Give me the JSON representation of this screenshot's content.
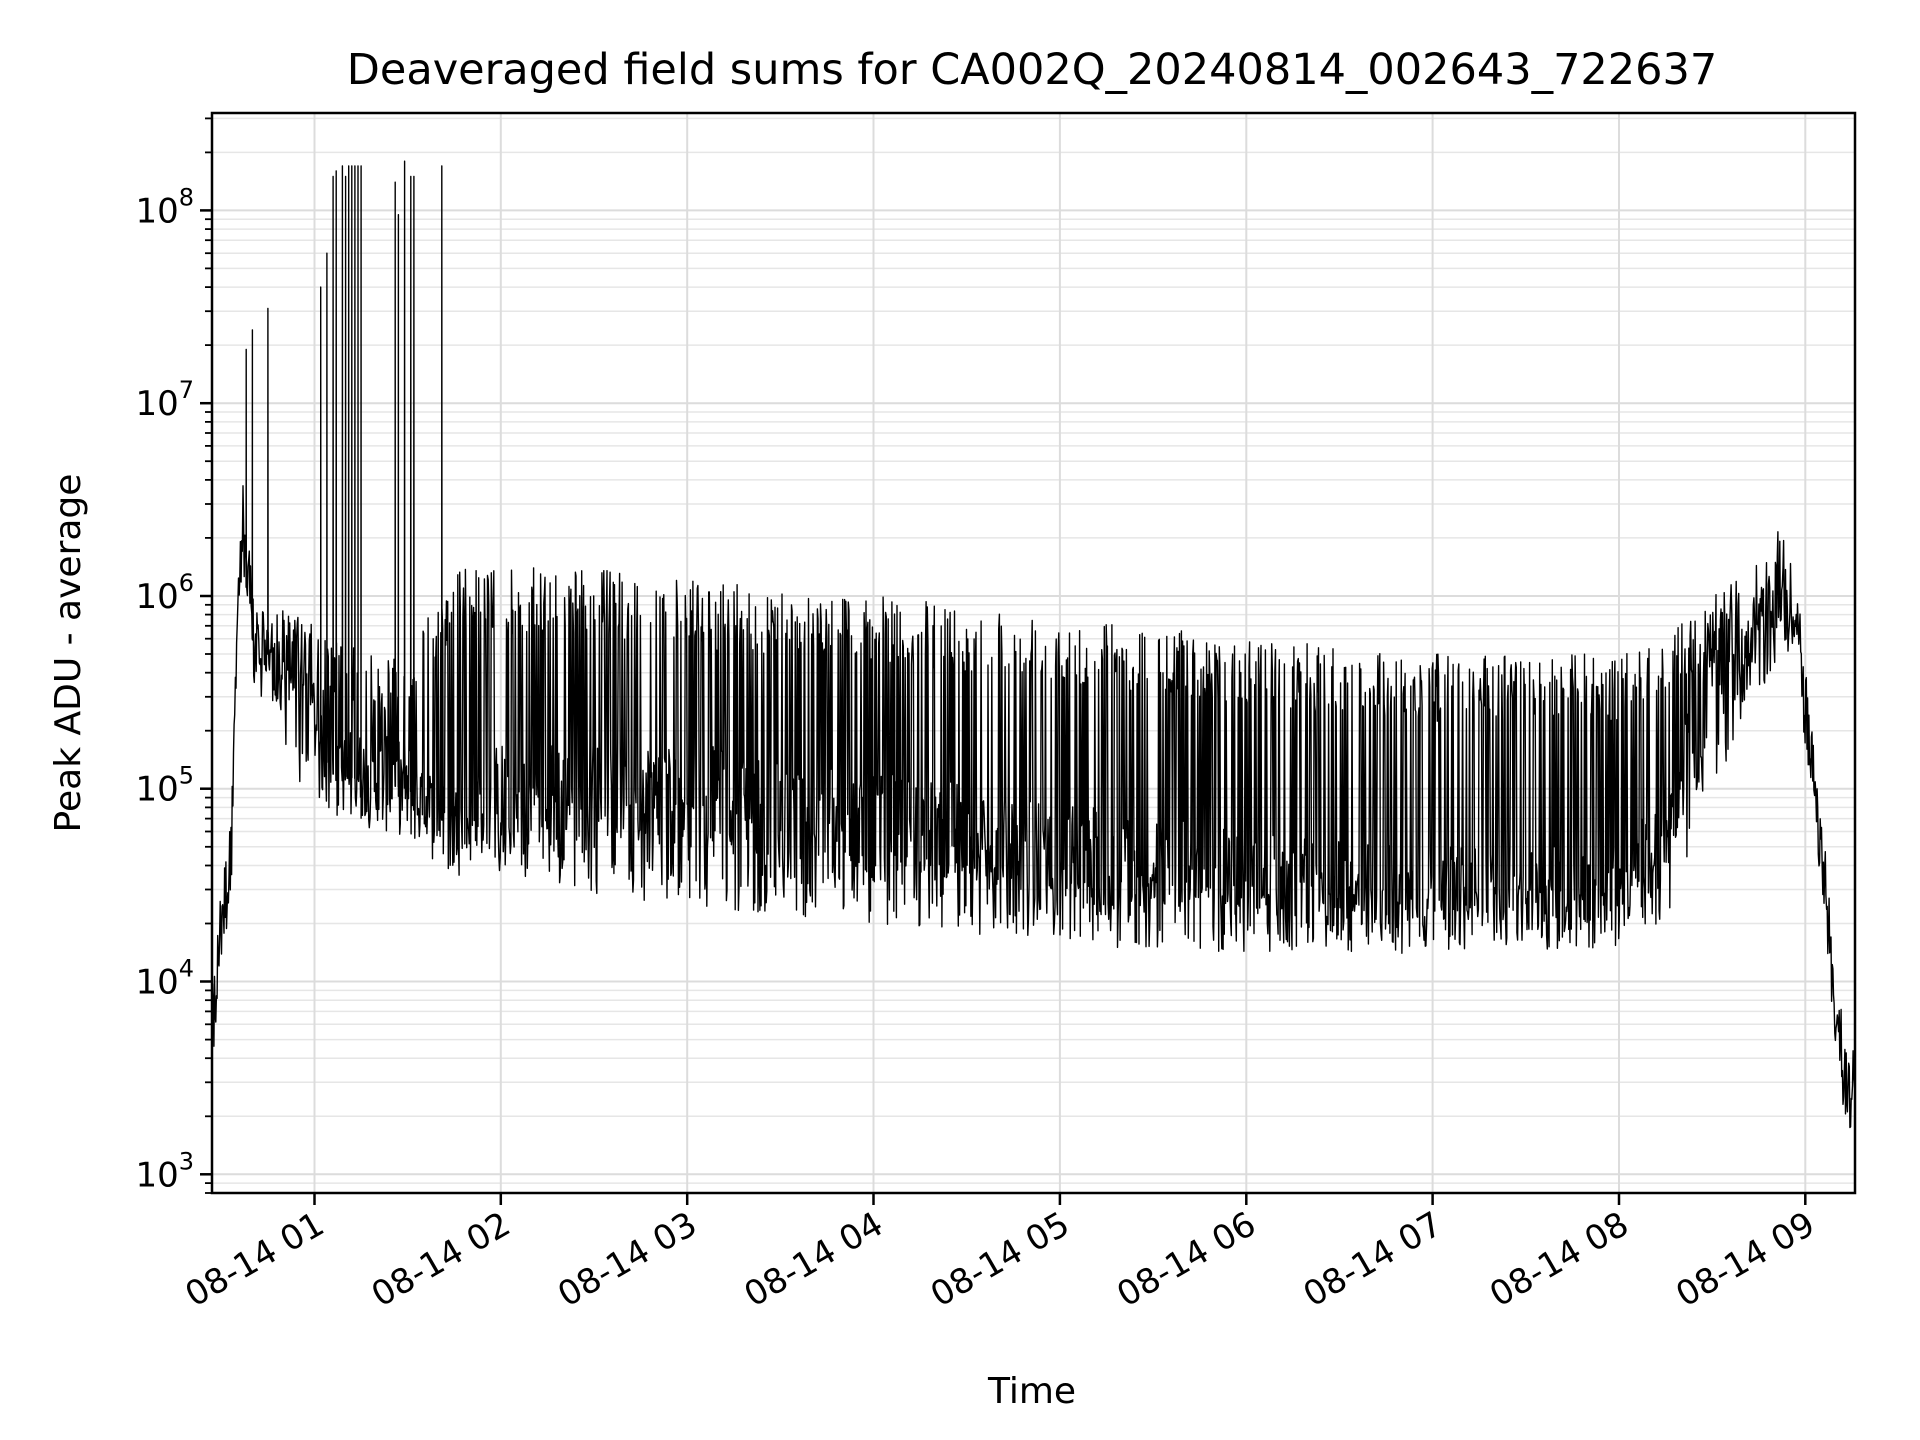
{
  "chart_data": {
    "type": "line",
    "title": "Deaveraged field sums for CA002Q_20240814_002643_722637",
    "xlabel": "Time",
    "ylabel": "Peak ADU - average",
    "x_scale": "time",
    "y_scale": "log",
    "xlim": [
      "2024-08-14 00:27",
      "2024-08-14 09:16"
    ],
    "ylim": [
      800,
      320000000
    ],
    "x_ticks": [
      "08-14 01",
      "08-14 02",
      "08-14 03",
      "08-14 04",
      "08-14 05",
      "08-14 06",
      "08-14 07",
      "08-14 08",
      "08-14 09"
    ],
    "y_ticks": [
      {
        "base": "10",
        "exp": "3",
        "value": 1000
      },
      {
        "base": "10",
        "exp": "4",
        "value": 10000
      },
      {
        "base": "10",
        "exp": "5",
        "value": 100000
      },
      {
        "base": "10",
        "exp": "6",
        "value": 1000000
      },
      {
        "base": "10",
        "exp": "7",
        "value": 10000000
      },
      {
        "base": "10",
        "exp": "8",
        "value": 100000000
      }
    ],
    "grid": true,
    "series": [
      {
        "color": "#000000",
        "envelope": [
          {
            "t": "2024-08-14 00:27",
            "low": 3500,
            "base": 5000,
            "high": 7000
          },
          {
            "t": "2024-08-14 00:30",
            "low": 15000,
            "base": 20000,
            "high": 30000
          },
          {
            "t": "2024-08-14 00:33",
            "low": 30000,
            "base": 40000,
            "high": 60000
          },
          {
            "t": "2024-08-14 00:35",
            "low": 300000,
            "base": 800000,
            "high": 1200000
          },
          {
            "t": "2024-08-14 00:37",
            "low": 1500000,
            "base": 2500000,
            "high": 3000000
          },
          {
            "t": "2024-08-14 00:40",
            "low": 300000,
            "base": 600000,
            "high": 1200000
          },
          {
            "t": "2024-08-14 00:45",
            "low": 300000,
            "base": 500000,
            "high": 800000
          },
          {
            "t": "2024-08-14 00:55",
            "low": 100000,
            "base": 450000,
            "high": 800000
          },
          {
            "t": "2024-08-14 01:05",
            "low": 80000,
            "base": 120000,
            "high": 600000
          },
          {
            "t": "2024-08-14 01:30",
            "low": 60000,
            "base": 100000,
            "high": 500000
          },
          {
            "t": "2024-08-14 01:45",
            "low": 45000,
            "base": 60000,
            "high": 1400000
          },
          {
            "t": "2024-08-14 02:00",
            "low": 35000,
            "base": 100000,
            "high": 1400000
          },
          {
            "t": "2024-08-14 02:30",
            "low": 28000,
            "base": 100000,
            "high": 1400000
          },
          {
            "t": "2024-08-14 03:00",
            "low": 25000,
            "base": 100000,
            "high": 1200000
          },
          {
            "t": "2024-08-14 03:30",
            "low": 22000,
            "base": 80000,
            "high": 1100000
          },
          {
            "t": "2024-08-14 04:00",
            "low": 20000,
            "base": 70000,
            "high": 1000000
          },
          {
            "t": "2024-08-14 04:30",
            "low": 18000,
            "base": 60000,
            "high": 900000
          },
          {
            "t": "2024-08-14 05:00",
            "low": 15000,
            "base": 50000,
            "high": 800000
          },
          {
            "t": "2024-08-14 05:30",
            "low": 15000,
            "base": 40000,
            "high": 700000
          },
          {
            "t": "2024-08-14 06:00",
            "low": 14000,
            "base": 35000,
            "high": 600000
          },
          {
            "t": "2024-08-14 06:30",
            "low": 14000,
            "base": 30000,
            "high": 550000
          },
          {
            "t": "2024-08-14 07:00",
            "low": 14000,
            "base": 30000,
            "high": 500000
          },
          {
            "t": "2024-08-14 07:30",
            "low": 14000,
            "base": 28000,
            "high": 500000
          },
          {
            "t": "2024-08-14 08:00",
            "low": 15000,
            "base": 30000,
            "high": 500000
          },
          {
            "t": "2024-08-14 08:15",
            "low": 20000,
            "base": 60000,
            "high": 600000
          },
          {
            "t": "2024-08-14 08:30",
            "low": 100000,
            "base": 400000,
            "high": 1000000
          },
          {
            "t": "2024-08-14 08:45",
            "low": 300000,
            "base": 700000,
            "high": 1500000
          },
          {
            "t": "2024-08-14 08:53",
            "low": 500000,
            "base": 1500000,
            "high": 2500000
          },
          {
            "t": "2024-08-14 08:58",
            "low": 400000,
            "base": 600000,
            "high": 700000
          },
          {
            "t": "2024-08-14 09:02",
            "low": 100000,
            "base": 150000,
            "high": 200000
          },
          {
            "t": "2024-08-14 09:06",
            "low": 20000,
            "base": 40000,
            "high": 60000
          },
          {
            "t": "2024-08-14 09:10",
            "low": 3000,
            "base": 5000,
            "high": 8000
          },
          {
            "t": "2024-08-14 09:16",
            "low": 1500,
            "base": 2500,
            "high": 3500
          }
        ],
        "spikes": [
          {
            "t": "2024-08-14 00:38",
            "y": 19000000
          },
          {
            "t": "2024-08-14 00:40",
            "y": 24000000
          },
          {
            "t": "2024-08-14 00:45",
            "y": 31000000
          },
          {
            "t": "2024-08-14 01:02",
            "y": 40000000
          },
          {
            "t": "2024-08-14 01:04",
            "y": 60000000
          },
          {
            "t": "2024-08-14 01:06",
            "y": 150000000
          },
          {
            "t": "2024-08-14 01:07",
            "y": 160000000
          },
          {
            "t": "2024-08-14 01:09",
            "y": 170000000
          },
          {
            "t": "2024-08-14 01:10",
            "y": 150000000
          },
          {
            "t": "2024-08-14 01:11",
            "y": 170000000
          },
          {
            "t": "2024-08-14 01:12",
            "y": 170000000
          },
          {
            "t": "2024-08-14 01:13",
            "y": 170000000
          },
          {
            "t": "2024-08-14 01:14",
            "y": 170000000
          },
          {
            "t": "2024-08-14 01:15",
            "y": 170000000
          },
          {
            "t": "2024-08-14 01:26",
            "y": 140000000
          },
          {
            "t": "2024-08-14 01:27",
            "y": 95000000
          },
          {
            "t": "2024-08-14 01:29",
            "y": 180000000
          },
          {
            "t": "2024-08-14 01:31",
            "y": 150000000
          },
          {
            "t": "2024-08-14 01:32",
            "y": 150000000
          },
          {
            "t": "2024-08-14 01:41",
            "y": 170000000
          }
        ]
      }
    ]
  }
}
